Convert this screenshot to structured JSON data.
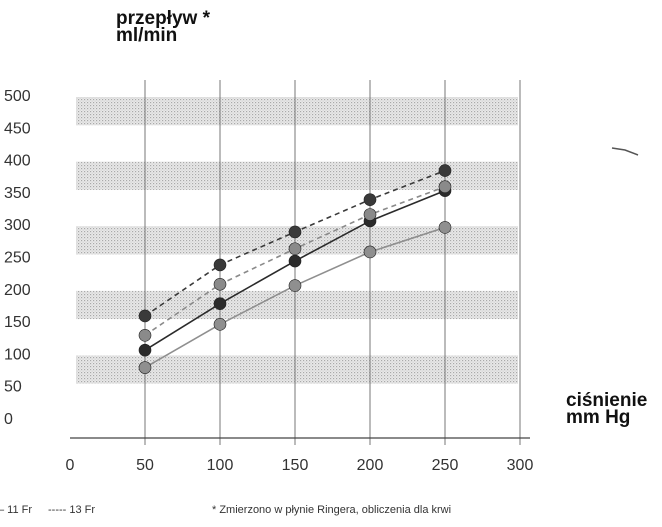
{
  "chart_data": {
    "type": "line",
    "ylabel_lines": [
      "przepływ *",
      "ml/min"
    ],
    "xlabel_lines": [
      "ciśnienie",
      "mm Hg"
    ],
    "xlim": [
      0,
      300
    ],
    "ylim": [
      0,
      500
    ],
    "x_ticks": [
      "0",
      "50",
      "100",
      "150",
      "200",
      "250",
      "300"
    ],
    "y_ticks": [
      "500",
      "450",
      "400",
      "350",
      "300",
      "250",
      "200",
      "150",
      "100",
      "50",
      "0"
    ],
    "x": [
      50,
      100,
      150,
      200,
      250
    ],
    "series": [
      {
        "name": "11 Fr",
        "values": [
          105,
          177,
          243,
          305,
          352
        ],
        "color": "#2b2b2b",
        "dash": "solid"
      },
      {
        "name": "13 Fr",
        "values": [
          158,
          237,
          288,
          338,
          383
        ],
        "color": "#3a3a3a",
        "dash": "dashed"
      },
      {
        "values": [
          128,
          207,
          262,
          315,
          358
        ],
        "color": "#8a8a8a",
        "dash": "dashed"
      },
      {
        "values": [
          78,
          145,
          205,
          257,
          295
        ],
        "color": "#8f8f8f",
        "dash": "solid"
      }
    ],
    "grid": true
  },
  "legend": {
    "item1": "– 11 Fr",
    "item2": "----- 13 Fr"
  },
  "footnote": "* Zmierzono w płynie Ringera, obliczenia dla krwi"
}
